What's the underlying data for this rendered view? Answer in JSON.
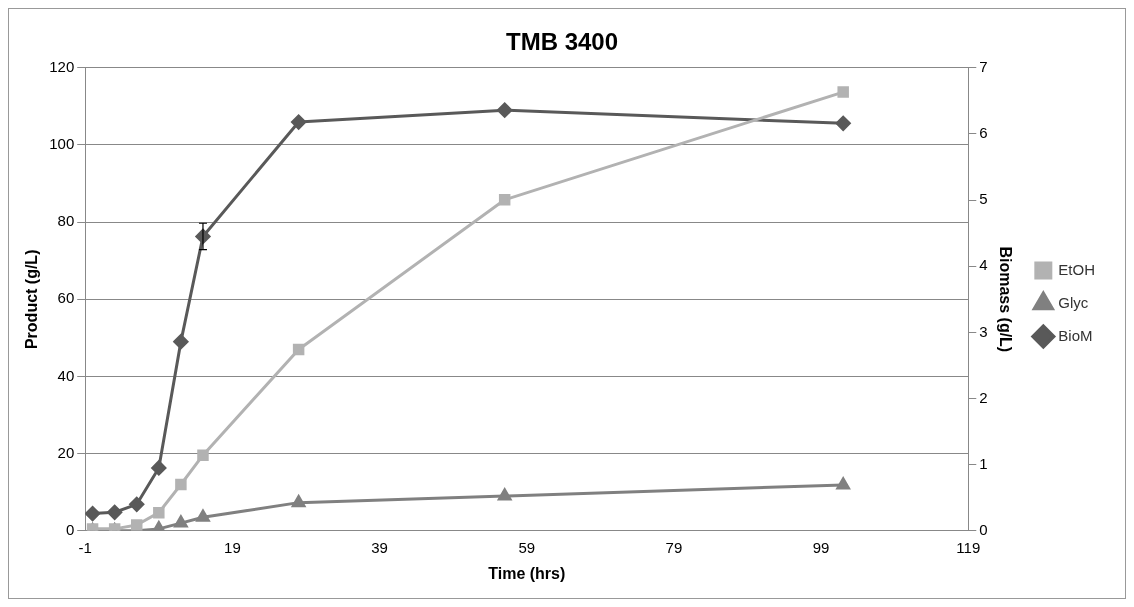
{
  "chart_data": {
    "type": "line",
    "title": "TMB 3400",
    "xlabel": "Time (hrs)",
    "ylabel": "Product (g/L)",
    "y2label": "Biomass (g/L)",
    "xlim": [
      -1,
      119
    ],
    "xticks": [
      -1,
      19,
      39,
      59,
      79,
      99,
      119
    ],
    "ylim": [
      0,
      120
    ],
    "yticks": [
      0,
      20,
      40,
      60,
      80,
      100,
      120
    ],
    "y2lim": [
      0,
      7
    ],
    "y2ticks": [
      0,
      1,
      2,
      3,
      4,
      5,
      6,
      7
    ],
    "x": [
      0,
      3,
      6,
      9,
      12,
      15,
      28,
      56,
      102
    ],
    "series": [
      {
        "name": "EtOH",
        "color": "#b2b2b2",
        "marker": "square",
        "values": [
          0.5,
          0.5,
          1.5,
          4.7,
          12,
          19.6,
          47,
          85.8,
          113.7
        ]
      },
      {
        "name": "Glyc",
        "color": "#808080",
        "marker": "triangle",
        "values": [
          0,
          0,
          0,
          0.5,
          2,
          3.5,
          7.3,
          9,
          11.9
        ]
      },
      {
        "name": "BioM",
        "color": "#595959",
        "marker": "diamond",
        "axis": "y2",
        "values": [
          0.26,
          0.28,
          0.4,
          0.95,
          2.86,
          4.45,
          6.18,
          6.36,
          6.16
        ],
        "errors": [
          null,
          null,
          null,
          null,
          null,
          0.2,
          null,
          null,
          null
        ]
      }
    ],
    "grid": "y",
    "legend": "right",
    "line_style": "solid"
  }
}
